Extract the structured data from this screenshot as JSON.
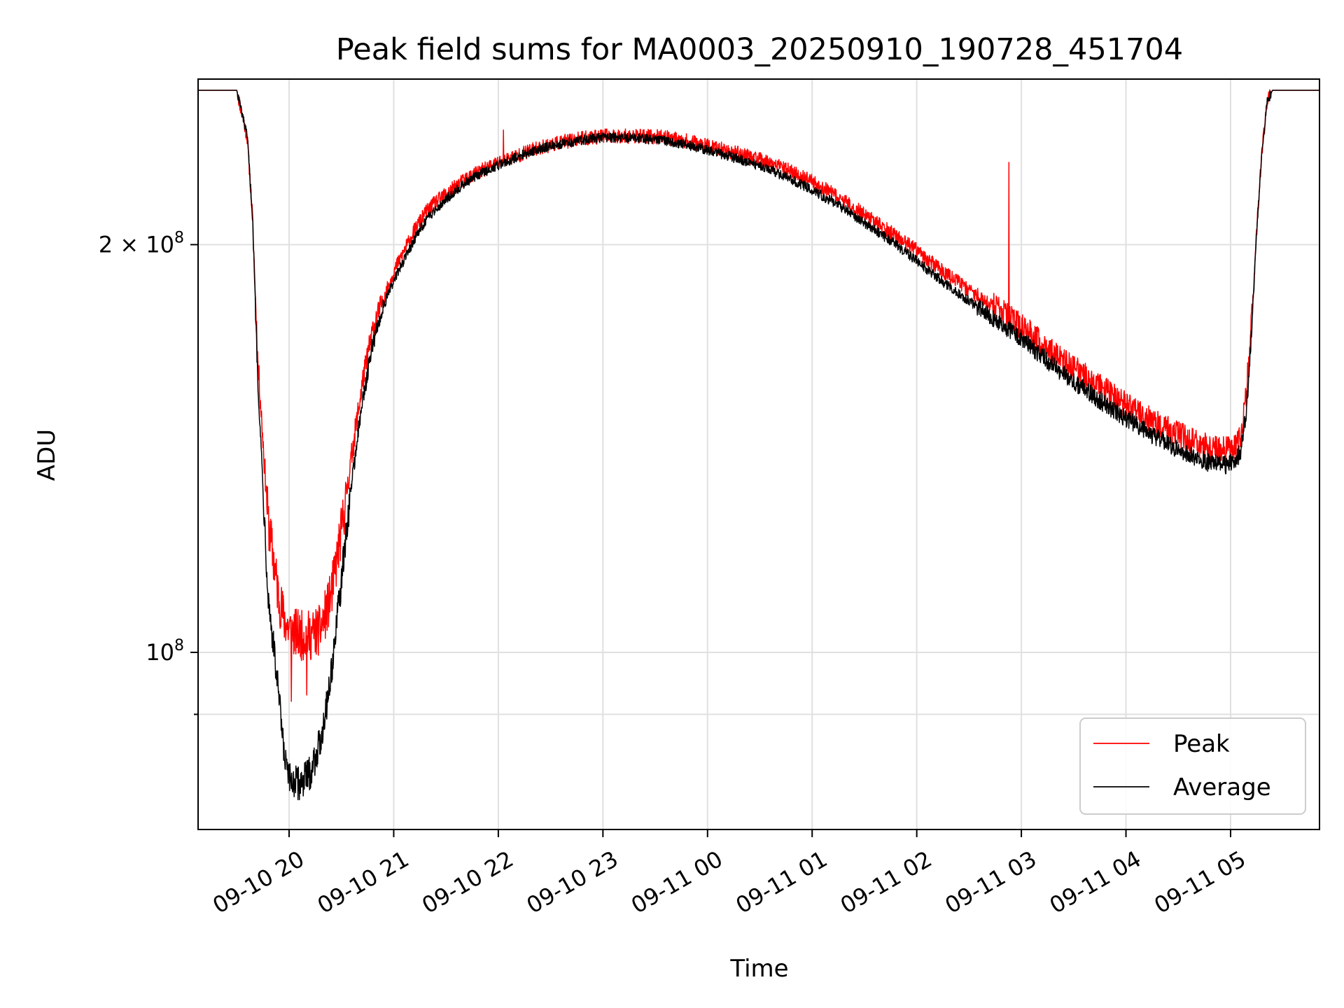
{
  "chart_data": {
    "type": "line",
    "title": "Peak field sums for MA0003_20250910_190728_451704",
    "xlabel": "Time",
    "ylabel": "ADU",
    "y_scale": "log",
    "xlim": [
      -0.87,
      9.85
    ],
    "ylim": [
      74000000,
      265000000
    ],
    "x_unit": "hours after 09-10 20:00",
    "x_ticks": [
      {
        "value": 0,
        "label": "09-10 20"
      },
      {
        "value": 1,
        "label": "09-10 21"
      },
      {
        "value": 2,
        "label": "09-10 22"
      },
      {
        "value": 3,
        "label": "09-10 23"
      },
      {
        "value": 4,
        "label": "09-11 00"
      },
      {
        "value": 5,
        "label": "09-11 01"
      },
      {
        "value": 6,
        "label": "09-11 02"
      },
      {
        "value": 7,
        "label": "09-11 03"
      },
      {
        "value": 8,
        "label": "09-11 04"
      },
      {
        "value": 9,
        "label": "09-11 05"
      }
    ],
    "y_ticks": [
      {
        "value": 100000000,
        "base": "10",
        "exp": "8",
        "prefix": ""
      },
      {
        "value": 200000000,
        "base": "10",
        "exp": "8",
        "prefix": "2 × "
      }
    ],
    "y_minor_ticks": [
      90000000
    ],
    "grid": true,
    "legend_position": "lower-right",
    "series": [
      {
        "name": "Peak",
        "color": "#ff0000",
        "noise": 0.018,
        "x": [
          -0.87,
          -0.6,
          -0.5,
          -0.4,
          -0.35,
          -0.3,
          -0.2,
          -0.1,
          -0.05,
          0.0,
          0.1,
          0.2,
          0.3,
          0.4,
          0.5,
          0.6,
          0.7,
          0.8,
          0.9,
          1.0,
          1.1,
          1.2,
          1.3,
          1.4,
          1.5,
          1.6,
          1.7,
          1.8,
          2.0,
          2.2,
          2.4,
          2.6,
          2.8,
          3.0,
          3.2,
          3.4,
          3.6,
          3.8,
          4.0,
          4.2,
          4.4,
          4.6,
          4.8,
          5.0,
          5.2,
          5.4,
          5.6,
          5.8,
          6.0,
          6.2,
          6.4,
          6.6,
          6.8,
          7.0,
          7.2,
          7.4,
          7.6,
          7.8,
          8.0,
          8.2,
          8.4,
          8.6,
          8.8,
          8.95,
          9.05,
          9.1,
          9.15,
          9.2,
          9.25,
          9.3,
          9.35,
          9.4,
          9.5,
          9.6,
          9.7,
          9.85
        ],
        "y": [
          260000000,
          260000000,
          260000000,
          240000000,
          210000000,
          165000000,
          125000000,
          110000000,
          106000000,
          104000000,
          103000000,
          103000000,
          104000000,
          110000000,
          123000000,
          140000000,
          158000000,
          173000000,
          182000000,
          191000000,
          198000000,
          205000000,
          211000000,
          215000000,
          218000000,
          221000000,
          224000000,
          226000000,
          230000000,
          233000000,
          236000000,
          238000000,
          239500000,
          240500000,
          240500000,
          240500000,
          240000000,
          238500000,
          236500000,
          234500000,
          232500000,
          229500000,
          226500000,
          222500000,
          218000000,
          213000000,
          208000000,
          203000000,
          198000000,
          192500000,
          187500000,
          183000000,
          178500000,
          174000000,
          169000000,
          164000000,
          160000000,
          156000000,
          152500000,
          149000000,
          146000000,
          143500000,
          141500000,
          141000000,
          142000000,
          145000000,
          155000000,
          175000000,
          205000000,
          235000000,
          255000000,
          260000000,
          260000000,
          260000000,
          260000000,
          260000000
        ],
        "spikes": [
          {
            "x": 2.05,
            "y": 243000000
          },
          {
            "x": 6.88,
            "y": 230000000
          },
          {
            "x": 0.02,
            "y": 92000000
          },
          {
            "x": 0.17,
            "y": 93000000
          }
        ]
      },
      {
        "name": "Average",
        "color": "#000000",
        "noise": 0.012,
        "x": [
          -0.87,
          -0.6,
          -0.5,
          -0.4,
          -0.35,
          -0.3,
          -0.2,
          -0.1,
          -0.05,
          0.0,
          0.1,
          0.2,
          0.3,
          0.4,
          0.5,
          0.6,
          0.7,
          0.8,
          0.9,
          1.0,
          1.1,
          1.2,
          1.3,
          1.4,
          1.5,
          1.6,
          1.7,
          1.8,
          2.0,
          2.2,
          2.4,
          2.6,
          2.8,
          3.0,
          3.2,
          3.4,
          3.6,
          3.8,
          4.0,
          4.2,
          4.4,
          4.6,
          4.8,
          5.0,
          5.2,
          5.4,
          5.6,
          5.8,
          6.0,
          6.2,
          6.4,
          6.6,
          6.8,
          7.0,
          7.2,
          7.4,
          7.6,
          7.8,
          8.0,
          8.2,
          8.4,
          8.6,
          8.8,
          8.95,
          9.05,
          9.1,
          9.15,
          9.2,
          9.25,
          9.3,
          9.35,
          9.4,
          9.5,
          9.6,
          9.7,
          9.85
        ],
        "y": [
          260000000,
          260000000,
          260000000,
          240000000,
          210000000,
          160000000,
          110000000,
          93000000,
          84000000,
          80500000,
          80000000,
          81500000,
          86000000,
          96000000,
          113000000,
          134000000,
          153000000,
          169000000,
          180000000,
          188000000,
          195000000,
          202000000,
          208000000,
          212500000,
          216000000,
          219500000,
          222500000,
          225000000,
          229000000,
          232500000,
          235500000,
          237500000,
          239000000,
          240000000,
          240000000,
          239500000,
          238500000,
          237000000,
          235000000,
          232500000,
          230000000,
          227000000,
          223500000,
          219500000,
          215000000,
          210000000,
          205000000,
          200000000,
          194500000,
          189000000,
          184000000,
          179500000,
          175000000,
          170500000,
          165500000,
          160500000,
          156500000,
          152500000,
          149000000,
          145500000,
          142500000,
          140000000,
          138000000,
          137500000,
          138500000,
          141000000,
          150000000,
          172000000,
          205000000,
          235000000,
          255000000,
          260000000,
          260000000,
          260000000,
          260000000,
          260000000
        ]
      }
    ]
  }
}
